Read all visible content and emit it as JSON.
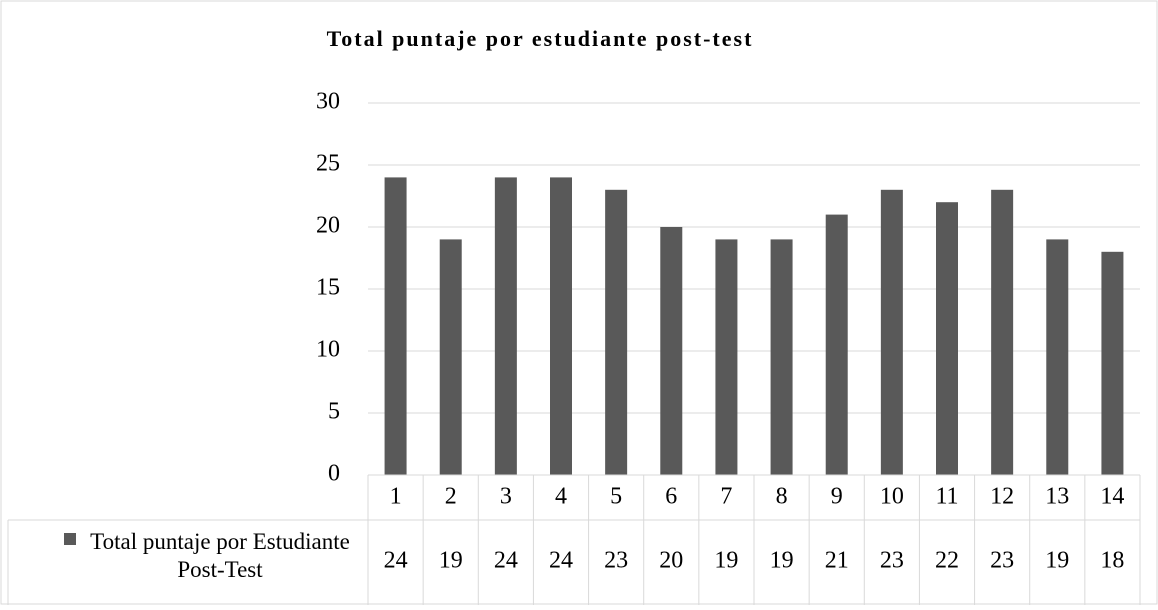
{
  "chart_data": {
    "type": "bar",
    "title": "Total puntaje por estudiante post-test",
    "categories": [
      "1",
      "2",
      "3",
      "4",
      "5",
      "6",
      "7",
      "8",
      "9",
      "10",
      "11",
      "12",
      "13",
      "14"
    ],
    "series": [
      {
        "name": "Total puntaje por Estudiante  Post-Test",
        "color": "#595959",
        "values": [
          24,
          19,
          24,
          24,
          23,
          20,
          19,
          19,
          21,
          23,
          22,
          23,
          19,
          18
        ]
      }
    ],
    "ylim": [
      0,
      30
    ],
    "yticks": [
      0,
      5,
      10,
      15,
      20,
      25,
      30
    ],
    "grid": true,
    "data_table": true
  }
}
